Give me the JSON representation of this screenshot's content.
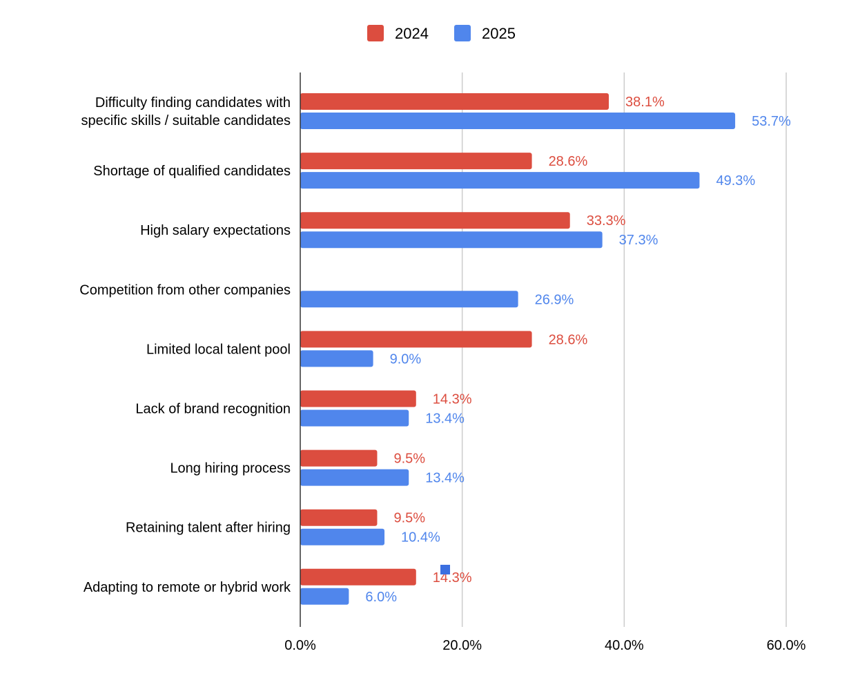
{
  "colors": {
    "series_2024": "#dc4d3f",
    "series_2025": "#5086ec",
    "gridline": "#cccccc",
    "axis": "#333333",
    "text": "#000000"
  },
  "chart_data": {
    "type": "bar",
    "orientation": "horizontal",
    "title": "",
    "xlabel": "",
    "ylabel": "",
    "xlim": [
      0,
      60
    ],
    "x_ticks": [
      0,
      20,
      40,
      60
    ],
    "x_tick_labels": [
      "0.0%",
      "20.0%",
      "40.0%",
      "60.0%"
    ],
    "grid": true,
    "legend_position": "top-center",
    "categories": [
      [
        "Difficulty finding candidates with",
        "specific skills / suitable candidates"
      ],
      [
        "Shortage of qualified candidates"
      ],
      [
        "High salary expectations"
      ],
      [
        "Competition from other companies"
      ],
      [
        "Limited local talent pool"
      ],
      [
        "Lack of brand recognition"
      ],
      [
        "Long hiring process"
      ],
      [
        "Retaining talent after hiring"
      ],
      [
        "Adapting to remote or hybrid work"
      ]
    ],
    "series": [
      {
        "name": "2024",
        "color_key": "series_2024",
        "values": [
          38.1,
          28.6,
          33.3,
          null,
          28.6,
          14.3,
          9.5,
          9.5,
          14.3
        ],
        "labels": [
          "38.1%",
          "28.6%",
          "33.3%",
          null,
          "28.6%",
          "14.3%",
          "9.5%",
          "9.5%",
          "14.3%"
        ]
      },
      {
        "name": "2025",
        "color_key": "series_2025",
        "values": [
          53.7,
          49.3,
          37.3,
          26.9,
          9.0,
          13.4,
          13.4,
          10.4,
          6.0
        ],
        "labels": [
          "53.7%",
          "49.3%",
          "37.3%",
          "26.9%",
          "9.0%",
          "13.4%",
          "13.4%",
          "10.4%",
          "6.0%"
        ]
      }
    ]
  }
}
